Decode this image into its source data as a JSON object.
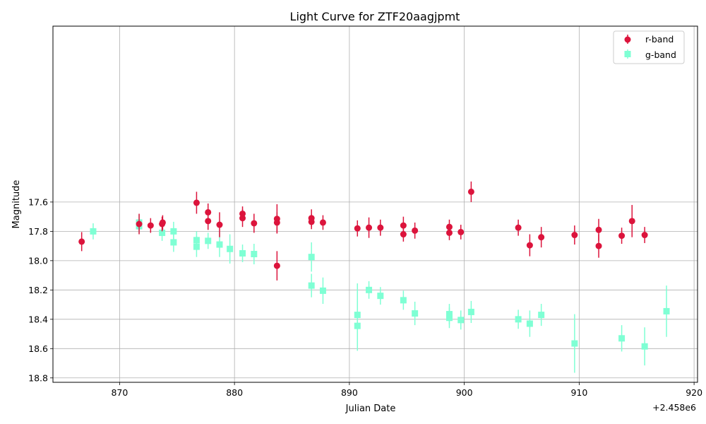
{
  "chart_data": {
    "type": "scatter",
    "title": "Light Curve for ZTF20aagjpmt",
    "xlabel": "Julian Date",
    "ylabel": "Magnitude",
    "x_offset_label": "+2.458e6",
    "xlim": [
      864.2,
      920.3
    ],
    "ylim": [
      18.83,
      16.4
    ],
    "y_inverted": true,
    "grid": true,
    "legend_position": "top-right",
    "xticks": [
      870,
      880,
      890,
      900,
      910,
      920
    ],
    "yticks": [
      17.6,
      17.8,
      18.0,
      18.2,
      18.4,
      18.6,
      18.8
    ],
    "series": [
      {
        "name": "r-band",
        "color": "#dc143c",
        "marker": "circle",
        "points": [
          [
            866.7,
            17.87,
            0.065
          ],
          [
            871.7,
            17.75,
            0.07
          ],
          [
            872.7,
            17.76,
            0.05
          ],
          [
            873.7,
            17.75,
            0.05
          ],
          [
            873.75,
            17.74,
            0.05
          ],
          [
            876.7,
            17.605,
            0.075
          ],
          [
            877.7,
            17.67,
            0.06
          ],
          [
            877.7,
            17.73,
            0.06
          ],
          [
            878.7,
            17.755,
            0.085
          ],
          [
            880.7,
            17.68,
            0.05
          ],
          [
            880.7,
            17.71,
            0.06
          ],
          [
            881.7,
            17.745,
            0.065
          ],
          [
            883.7,
            17.715,
            0.1
          ],
          [
            883.7,
            17.74,
            0.07
          ],
          [
            883.7,
            18.035,
            0.1
          ],
          [
            886.7,
            17.71,
            0.06
          ],
          [
            886.7,
            17.735,
            0.05
          ],
          [
            887.7,
            17.74,
            0.05
          ],
          [
            890.7,
            17.78,
            0.055
          ],
          [
            891.7,
            17.775,
            0.07
          ],
          [
            892.7,
            17.775,
            0.055
          ],
          [
            894.7,
            17.76,
            0.06
          ],
          [
            894.7,
            17.82,
            0.05
          ],
          [
            895.7,
            17.795,
            0.055
          ],
          [
            898.7,
            17.77,
            0.05
          ],
          [
            898.7,
            17.81,
            0.05
          ],
          [
            899.7,
            17.805,
            0.05
          ],
          [
            900.6,
            17.53,
            0.07
          ],
          [
            904.7,
            17.775,
            0.055
          ],
          [
            905.7,
            17.895,
            0.075
          ],
          [
            906.7,
            17.84,
            0.07
          ],
          [
            909.6,
            17.825,
            0.065
          ],
          [
            911.7,
            17.79,
            0.075
          ],
          [
            911.7,
            17.9,
            0.08
          ],
          [
            913.7,
            17.83,
            0.055
          ],
          [
            914.6,
            17.73,
            0.11
          ],
          [
            915.7,
            17.825,
            0.055
          ]
        ]
      },
      {
        "name": "g-band",
        "color": "#7fffd4",
        "marker": "square",
        "points": [
          [
            867.7,
            17.8,
            0.055
          ],
          [
            871.7,
            17.74,
            0.055
          ],
          [
            871.7,
            17.765,
            0.05
          ],
          [
            873.7,
            17.81,
            0.055
          ],
          [
            874.7,
            17.8,
            0.065
          ],
          [
            874.7,
            17.875,
            0.065
          ],
          [
            876.7,
            17.86,
            0.06
          ],
          [
            876.7,
            17.905,
            0.07
          ],
          [
            877.7,
            17.865,
            0.055
          ],
          [
            878.7,
            17.89,
            0.085
          ],
          [
            879.6,
            17.92,
            0.1
          ],
          [
            880.7,
            17.95,
            0.06
          ],
          [
            881.7,
            17.955,
            0.07
          ],
          [
            886.7,
            17.975,
            0.1
          ],
          [
            886.7,
            18.17,
            0.08
          ],
          [
            887.7,
            18.205,
            0.09
          ],
          [
            890.7,
            18.37,
            0.215
          ],
          [
            890.7,
            18.445,
            0.17
          ],
          [
            891.7,
            18.2,
            0.06
          ],
          [
            892.7,
            18.24,
            0.06
          ],
          [
            894.7,
            18.27,
            0.065
          ],
          [
            895.7,
            18.36,
            0.08
          ],
          [
            898.7,
            18.365,
            0.07
          ],
          [
            898.7,
            18.39,
            0.07
          ],
          [
            899.7,
            18.405,
            0.065
          ],
          [
            900.6,
            18.35,
            0.075
          ],
          [
            904.7,
            18.4,
            0.065
          ],
          [
            905.7,
            18.43,
            0.09
          ],
          [
            906.7,
            18.37,
            0.075
          ],
          [
            909.6,
            18.565,
            0.2
          ],
          [
            913.7,
            18.53,
            0.09
          ],
          [
            915.7,
            18.585,
            0.13
          ],
          [
            917.6,
            18.345,
            0.175
          ]
        ]
      }
    ]
  }
}
